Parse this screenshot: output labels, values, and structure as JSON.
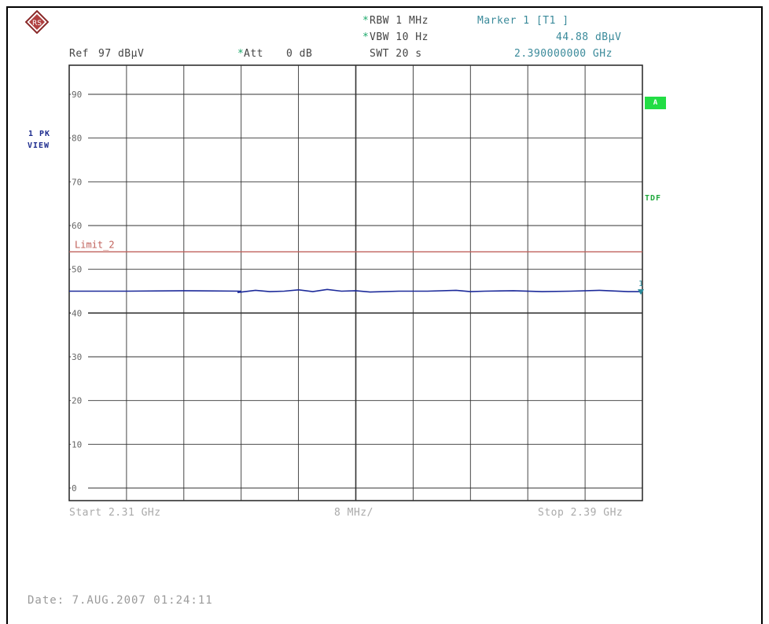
{
  "header": {
    "ref_label": "Ref",
    "ref_value": "97 dBµV",
    "att_label": "Att",
    "att_value": "0 dB",
    "rbw": "RBW 1 MHz",
    "vbw": "VBW 10 Hz",
    "swt": "SWT 20 s",
    "marker_title": "Marker 1 [T1 ]",
    "marker_level": "44.88 dBµV",
    "marker_freq": "2.390000000 GHz",
    "star": "*"
  },
  "side": {
    "trace_label_1": "1 PK",
    "trace_label_2": "VIEW",
    "box_a": "A",
    "tdf": "TDF"
  },
  "footer": {
    "start": "Start 2.31 GHz",
    "span_per_div": "8 MHz/",
    "stop": "Stop 2.39 GHz",
    "date": "Date: 7.AUG.2007 01:24:11"
  },
  "colors": {
    "grid": "#333333",
    "trace": "#1c2a9a",
    "limit": "#c0605a",
    "marker": "#2a8a9a",
    "accent_green": "#22dd44"
  },
  "chart_data": {
    "type": "line",
    "title": "",
    "xlabel": "",
    "ylabel": "",
    "xlim": [
      2.31,
      2.39
    ],
    "ylim": [
      0,
      97
    ],
    "y_ticks": [
      0,
      10,
      20,
      30,
      40,
      50,
      60,
      70,
      80,
      90
    ],
    "y_tick_labels": [
      "0",
      "10",
      "20",
      "30",
      "40",
      "50",
      "60",
      "70",
      "80",
      "90"
    ],
    "x_divisions": 10,
    "limit_line": {
      "name": "Limit_2",
      "value": 54
    },
    "series": [
      {
        "x": [
          2.31,
          2.318,
          2.326,
          2.334,
          2.3335,
          2.336,
          2.338,
          2.34,
          2.342,
          2.344,
          2.346,
          2.348,
          2.35,
          2.352,
          2.356,
          2.36,
          2.364,
          2.366,
          2.368,
          2.372,
          2.376,
          2.38,
          2.384,
          2.388,
          2.39
        ],
        "values": [
          45.0,
          45.0,
          45.1,
          45.0,
          44.7,
          45.2,
          44.9,
          45.0,
          45.3,
          44.9,
          45.4,
          45.0,
          45.1,
          44.8,
          45.0,
          45.0,
          45.2,
          44.9,
          45.0,
          45.1,
          44.9,
          45.0,
          45.2,
          44.9,
          44.9
        ]
      }
    ],
    "marker": {
      "x": 2.39,
      "y": 44.88,
      "label": "1"
    }
  }
}
